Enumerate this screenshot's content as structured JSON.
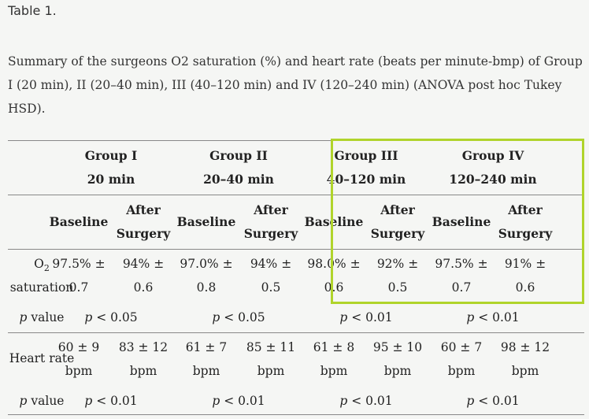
{
  "table_label": "Table 1.",
  "caption": "Summary of the surgeons O2 saturation (%) and heart rate (beats per minute-bmp) of Group I (20 min), II (20–40 min), III (40–120 min) and IV (120–240 min) (ANOVA post hoc Tukey HSD).",
  "highlight_color": "#b0d42b",
  "groups": [
    {
      "name": "Group I",
      "time": "20 min"
    },
    {
      "name": "Group II",
      "time": "20–40 min"
    },
    {
      "name": "Group III",
      "time": "40–120 min"
    },
    {
      "name": "Group IV",
      "time": "120–240 min"
    }
  ],
  "subheaders": {
    "baseline": "Baseline",
    "after_line1": "After",
    "after_line2": "Surgery"
  },
  "rows": {
    "o2": {
      "label_main": "O",
      "label_sub": "2",
      "label_line2": "saturation",
      "values": [
        [
          "97.5% ±",
          "0.7"
        ],
        [
          "94% ±",
          "0.6"
        ],
        [
          "97.0% ±",
          "0.8"
        ],
        [
          "94% ±",
          "0.5"
        ],
        [
          "98.0% ±",
          "0.6"
        ],
        [
          "92% ±",
          "0.5"
        ],
        [
          "97.5% ±",
          "0.7"
        ],
        [
          "91% ±",
          "0.6"
        ]
      ]
    },
    "o2_p": {
      "label_italic": "p",
      "label_rest": " value",
      "values": [
        "< 0.05",
        "< 0.05",
        "< 0.01",
        "< 0.01"
      ]
    },
    "hr": {
      "label": "Heart rate",
      "values": [
        [
          "60 ± 9",
          "bpm"
        ],
        [
          "83 ± 12",
          "bpm"
        ],
        [
          "61 ± 7",
          "bpm"
        ],
        [
          "85 ± 11",
          "bpm"
        ],
        [
          "61 ± 8",
          "bpm"
        ],
        [
          "95 ± 10",
          "bpm"
        ],
        [
          "60 ± 7",
          "bpm"
        ],
        [
          "98 ± 12",
          "bpm"
        ]
      ]
    },
    "hr_p": {
      "label_italic": "p",
      "label_rest": " value",
      "values": [
        "< 0.01",
        "< 0.01",
        "< 0.01",
        "< 0.01"
      ]
    }
  }
}
